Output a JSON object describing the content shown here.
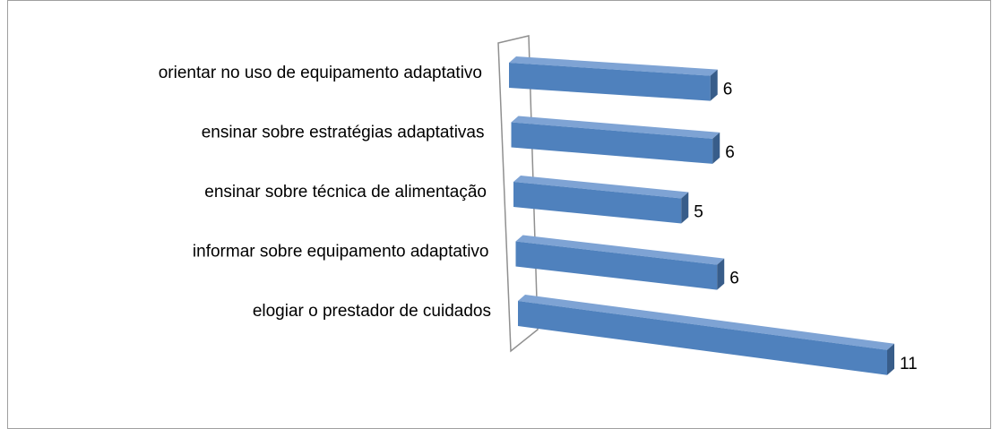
{
  "chart_data": {
    "type": "bar3d_horizontal",
    "categories": [
      "orientar no uso de equipamento adaptativo",
      "ensinar sobre estratégias adaptativas",
      "ensinar sobre técnica de alimentação",
      "informar sobre equipamento adaptativo",
      "elogiar o prestador de cuidados"
    ],
    "values": [
      6,
      6,
      5,
      6,
      11
    ],
    "color": "#4f81bd"
  }
}
